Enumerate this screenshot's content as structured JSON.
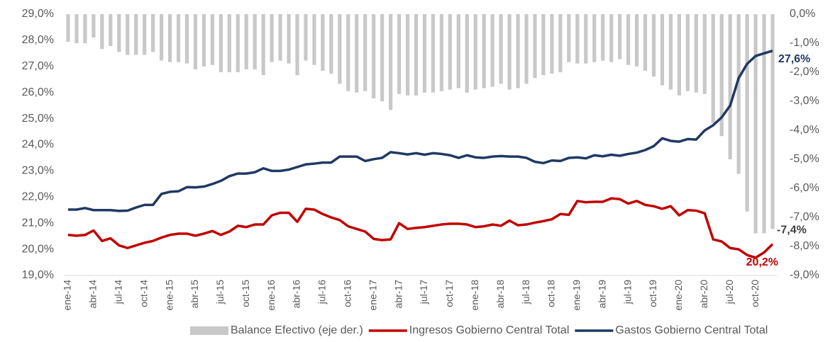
{
  "chart_data": {
    "type": "combo",
    "categories": [
      "ene-14",
      null,
      null,
      "abr-14",
      null,
      null,
      "jul-14",
      null,
      null,
      "oct-14",
      null,
      null,
      "ene-15",
      null,
      null,
      "abr-15",
      null,
      null,
      "jul-15",
      null,
      null,
      "oct-15",
      null,
      null,
      "ene-16",
      null,
      null,
      "abr-16",
      null,
      null,
      "jul-16",
      null,
      null,
      "oct-16",
      null,
      null,
      "ene-17",
      null,
      null,
      "abr-17",
      null,
      null,
      "jul-17",
      null,
      null,
      "oct-17",
      null,
      null,
      "ene-18",
      null,
      null,
      "abr-18",
      null,
      null,
      "jul-18",
      null,
      null,
      "oct-18",
      null,
      null,
      "ene-19",
      null,
      null,
      "abr-19",
      null,
      null,
      "jul-19",
      null,
      null,
      "oct-19",
      null,
      null,
      "ene-20",
      null,
      null,
      "abr-20",
      null,
      null,
      "jul-20",
      null,
      null,
      "oct-20",
      null,
      null
    ],
    "ylim": [
      19,
      29
    ],
    "yticks": [
      {
        "value": 19,
        "label": "19,0%"
      },
      {
        "value": 20,
        "label": "20,0%"
      },
      {
        "value": 21,
        "label": "21,0%"
      },
      {
        "value": 22,
        "label": "22,0%"
      },
      {
        "value": 23,
        "label": "23,0%"
      },
      {
        "value": 24,
        "label": "24,0%"
      },
      {
        "value": 25,
        "label": "25,0%"
      },
      {
        "value": 26,
        "label": "26,0%"
      },
      {
        "value": 27,
        "label": "27,0%"
      },
      {
        "value": 28,
        "label": "28,0%"
      },
      {
        "value": 29,
        "label": "29,0%"
      }
    ],
    "y2lim": [
      -9,
      0
    ],
    "y2ticks": [
      {
        "value": -9,
        "label": "-9,0%"
      },
      {
        "value": -8,
        "label": "-8,0%"
      },
      {
        "value": -7,
        "label": "-7,0%"
      },
      {
        "value": -6,
        "label": "-6,0%"
      },
      {
        "value": -5,
        "label": "-5,0%"
      },
      {
        "value": -4,
        "label": "-4,0%"
      },
      {
        "value": -3,
        "label": "-3,0%"
      },
      {
        "value": -2,
        "label": "-2,0%"
      },
      {
        "value": -1,
        "label": "-1,0%"
      },
      {
        "value": 0,
        "label": "0,0%"
      }
    ],
    "series": [
      {
        "name": "Balance Efectivo (eje der.)",
        "type": "bar",
        "axis": "y2",
        "color": "#c8c8c8",
        "values": [
          -0.95,
          -1.0,
          -1.0,
          -0.8,
          -1.2,
          -1.1,
          -1.3,
          -1.4,
          -1.4,
          -1.4,
          -1.3,
          -1.6,
          -1.65,
          -1.65,
          -1.7,
          -1.9,
          -1.8,
          -1.75,
          -2.0,
          -2.0,
          -2.0,
          -1.9,
          -1.9,
          -2.1,
          -1.65,
          -1.6,
          -1.7,
          -2.1,
          -1.6,
          -1.75,
          -1.95,
          -2.05,
          -2.4,
          -2.65,
          -2.7,
          -2.65,
          -2.9,
          -3.0,
          -3.3,
          -2.75,
          -2.8,
          -2.8,
          -2.7,
          -2.7,
          -2.65,
          -2.6,
          -2.55,
          -2.7,
          -2.6,
          -2.55,
          -2.5,
          -2.4,
          -2.6,
          -2.55,
          -2.4,
          -2.2,
          -2.1,
          -2.05,
          -2.0,
          -1.65,
          -1.7,
          -1.7,
          -1.65,
          -1.6,
          -1.65,
          -1.55,
          -1.75,
          -1.8,
          -1.95,
          -2.15,
          -2.45,
          -2.6,
          -2.8,
          -2.65,
          -2.7,
          -2.75,
          -3.75,
          -4.2,
          -5.0,
          -5.5,
          -6.8,
          -7.55,
          -7.55,
          -7.4
        ],
        "value_labels": [
          null,
          null,
          null,
          null,
          null,
          null,
          null,
          null,
          null,
          null,
          null,
          null,
          null,
          null,
          null,
          null,
          null,
          null,
          null,
          null,
          null,
          null,
          null,
          null,
          null,
          null,
          null,
          null,
          null,
          null,
          null,
          null,
          null,
          null,
          null,
          null,
          null,
          null,
          null,
          null,
          null,
          null,
          null,
          null,
          null,
          null,
          null,
          null,
          null,
          null,
          null,
          null,
          null,
          null,
          null,
          null,
          null,
          null,
          null,
          null,
          null,
          null,
          null,
          null,
          null,
          null,
          null,
          null,
          null,
          null,
          null,
          null,
          null,
          null,
          null,
          null,
          null,
          null,
          null,
          null,
          null,
          null,
          null,
          "-7,4%"
        ]
      },
      {
        "name": "Ingresos Gobierno Central Total",
        "type": "line",
        "color": "#c00000",
        "values": [
          20.55,
          20.52,
          20.55,
          20.72,
          20.32,
          20.42,
          20.15,
          20.05,
          20.15,
          20.25,
          20.32,
          20.45,
          20.55,
          20.6,
          20.6,
          20.52,
          20.6,
          20.7,
          20.55,
          20.68,
          20.9,
          20.85,
          20.95,
          20.95,
          21.3,
          21.4,
          21.4,
          21.05,
          21.55,
          21.52,
          21.35,
          21.22,
          21.12,
          20.88,
          20.78,
          20.68,
          20.4,
          20.35,
          20.38,
          21.0,
          20.78,
          20.82,
          20.85,
          20.9,
          20.95,
          20.98,
          20.98,
          20.95,
          20.85,
          20.88,
          20.95,
          20.9,
          21.1,
          20.92,
          20.95,
          21.02,
          21.08,
          21.15,
          21.35,
          21.32,
          21.85,
          21.8,
          21.82,
          21.82,
          21.95,
          21.92,
          21.75,
          21.85,
          21.7,
          21.65,
          21.55,
          21.65,
          21.3,
          21.5,
          21.48,
          21.38,
          20.38,
          20.3,
          20.05,
          20.0,
          19.78,
          19.68,
          19.88,
          20.2
        ],
        "value_labels": [
          null,
          null,
          null,
          null,
          null,
          null,
          null,
          null,
          null,
          null,
          null,
          null,
          null,
          null,
          null,
          null,
          null,
          null,
          null,
          null,
          null,
          null,
          null,
          null,
          null,
          null,
          null,
          null,
          null,
          null,
          null,
          null,
          null,
          null,
          null,
          null,
          null,
          null,
          null,
          null,
          null,
          null,
          null,
          null,
          null,
          null,
          null,
          null,
          null,
          null,
          null,
          null,
          null,
          null,
          null,
          null,
          null,
          null,
          null,
          null,
          null,
          null,
          null,
          null,
          null,
          null,
          null,
          null,
          null,
          null,
          null,
          null,
          null,
          null,
          null,
          null,
          null,
          null,
          null,
          null,
          null,
          null,
          null,
          "20,2%"
        ]
      },
      {
        "name": "Gastos Gobierno Central Total",
        "type": "line",
        "color": "#203864",
        "values": [
          21.52,
          21.52,
          21.58,
          21.5,
          21.5,
          21.5,
          21.47,
          21.48,
          21.6,
          21.7,
          21.7,
          22.12,
          22.2,
          22.22,
          22.38,
          22.37,
          22.4,
          22.5,
          22.62,
          22.8,
          22.9,
          22.9,
          22.95,
          23.1,
          23.0,
          23.0,
          23.05,
          23.15,
          23.25,
          23.28,
          23.32,
          23.32,
          23.55,
          23.55,
          23.55,
          23.38,
          23.45,
          23.5,
          23.72,
          23.68,
          23.63,
          23.68,
          23.62,
          23.68,
          23.65,
          23.6,
          23.5,
          23.6,
          23.52,
          23.5,
          23.55,
          23.57,
          23.55,
          23.55,
          23.5,
          23.35,
          23.3,
          23.4,
          23.38,
          23.5,
          23.52,
          23.48,
          23.6,
          23.56,
          23.62,
          23.58,
          23.65,
          23.7,
          23.8,
          23.95,
          24.25,
          24.15,
          24.12,
          24.22,
          24.2,
          24.55,
          24.75,
          25.05,
          25.5,
          26.55,
          27.1,
          27.4,
          27.5,
          27.6
        ],
        "value_labels": [
          null,
          null,
          null,
          null,
          null,
          null,
          null,
          null,
          null,
          null,
          null,
          null,
          null,
          null,
          null,
          null,
          null,
          null,
          null,
          null,
          null,
          null,
          null,
          null,
          null,
          null,
          null,
          null,
          null,
          null,
          null,
          null,
          null,
          null,
          null,
          null,
          null,
          null,
          null,
          null,
          null,
          null,
          null,
          null,
          null,
          null,
          null,
          null,
          null,
          null,
          null,
          null,
          null,
          null,
          null,
          null,
          null,
          null,
          null,
          null,
          null,
          null,
          null,
          null,
          null,
          null,
          null,
          null,
          null,
          null,
          null,
          null,
          null,
          null,
          null,
          null,
          null,
          null,
          null,
          null,
          null,
          null,
          null,
          "27,6%"
        ]
      }
    ]
  }
}
